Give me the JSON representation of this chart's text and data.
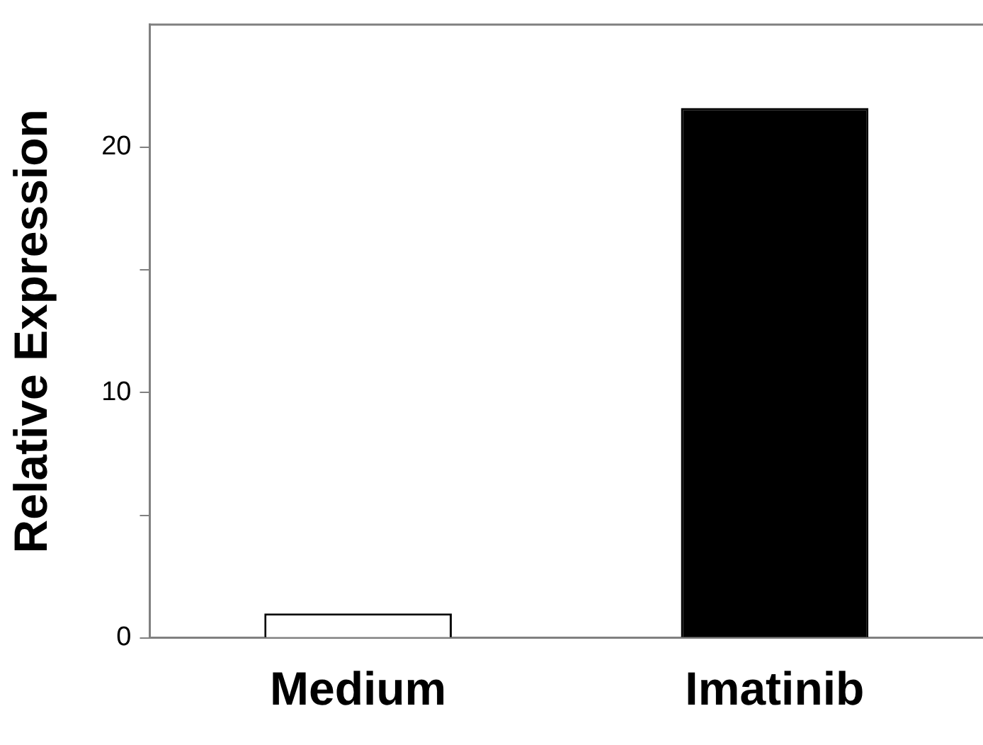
{
  "chart_data": {
    "type": "bar",
    "ylabel": "Relative Expression",
    "categories": [
      "Medium",
      "Imatinib"
    ],
    "values": [
      1.0,
      21.6
    ],
    "colors": [
      "#ffffff",
      "#000000"
    ],
    "ylim": [
      0,
      25
    ],
    "yticks": [
      0,
      {
        "value": 5,
        "label": null
      },
      10,
      {
        "value": 15,
        "label": null
      },
      20
    ],
    "grid": false,
    "legend": false
  }
}
